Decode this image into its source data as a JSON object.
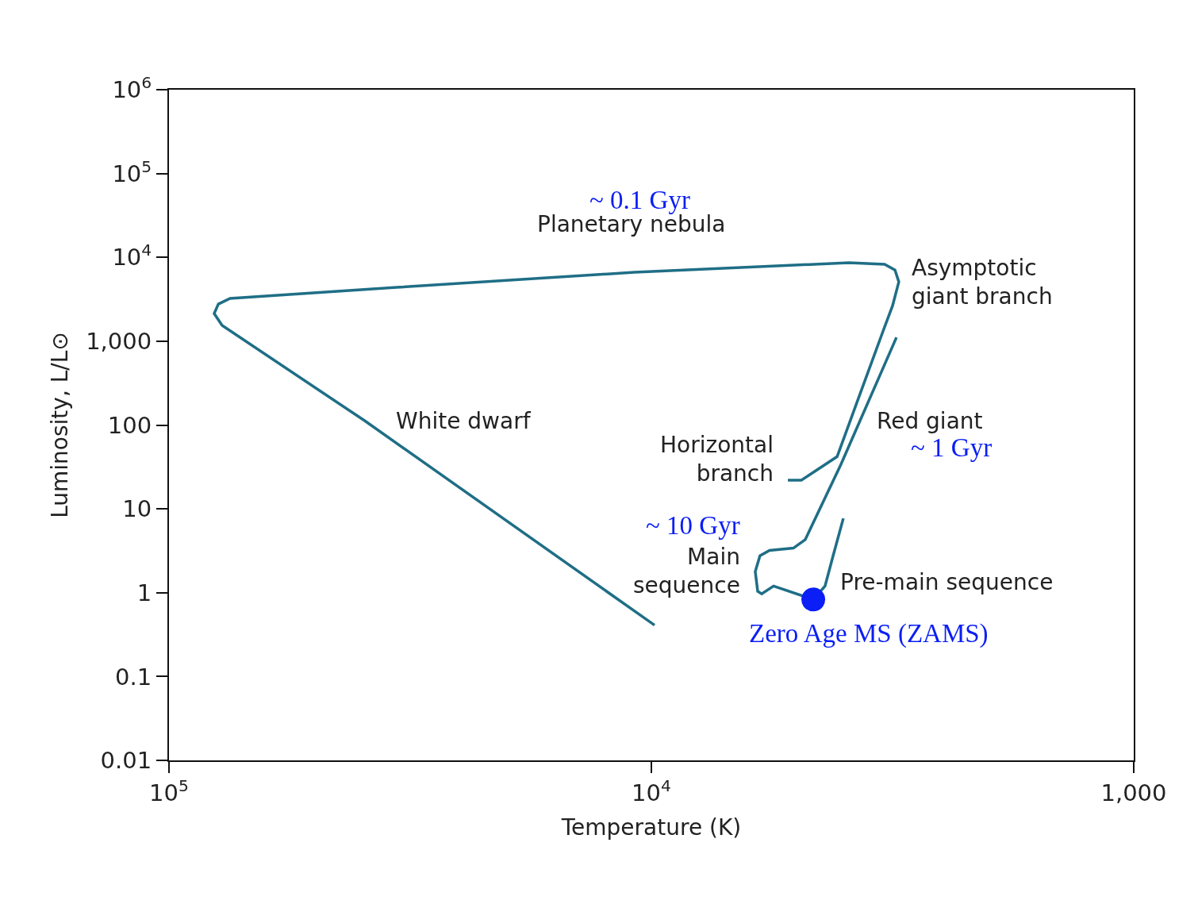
{
  "chart_data": {
    "type": "line",
    "xlabel": "Temperature (K)",
    "ylabel": "Luminosity, L/L⊙",
    "log": "xy",
    "marker": "none",
    "line_style": "solid",
    "xlim": [
      100000,
      1000
    ],
    "ylim": [
      0.01,
      1000000
    ],
    "xticks": [
      {
        "value": 100000,
        "label": "10$^{5}$"
      },
      {
        "value": 10000,
        "label": "10$^{4}$"
      },
      {
        "value": 1000,
        "label": "1,000"
      }
    ],
    "yticks": [
      {
        "value": 0.01,
        "label": "0.01"
      },
      {
        "value": 0.1,
        "label": "0.1"
      },
      {
        "value": 1,
        "label": "1"
      },
      {
        "value": 10,
        "label": "10"
      },
      {
        "value": 100,
        "label": "100"
      },
      {
        "value": 1000,
        "label": "1,000"
      },
      {
        "value": 10000,
        "label": "10$^{4}$"
      },
      {
        "value": 100000,
        "label": "10$^{5}$"
      },
      {
        "value": 1000000,
        "label": "10$^{6}$"
      }
    ],
    "series": [
      {
        "color": "#1f6e86",
        "x": [
          4000,
          4200,
          4365,
          4617
        ],
        "values": [
          7.7,
          2.76,
          1.2,
          0.83
        ]
      },
      {
        "color": "#1f6e86",
        "x": [
          4617,
          5580,
          5905,
          6020,
          6090,
          5955,
          5690,
          5077,
          4797,
          4045,
          3104
        ],
        "values": [
          0.83,
          1.2,
          0.97,
          1.04,
          1.79,
          2.76,
          3.2,
          3.4,
          4.3,
          34,
          1110
        ]
      },
      {
        "color": "#1f6e86",
        "x": [
          5212,
          4886,
          4120,
          3611,
          3322,
          3162,
          3069,
          3126,
          3284,
          3895,
          10830,
          33700,
          74700,
          79000,
          80600,
          77600,
          39250,
          9850
        ],
        "values": [
          22,
          22,
          42,
          335,
          1240,
          2650,
          5100,
          7080,
          8260,
          8630,
          6640,
          4390,
          3240,
          2770,
          2140,
          1540,
          112,
          0.41
        ]
      },
      {
        "type": "scatter",
        "color": "#0a1ef5",
        "marker": "circle",
        "x": [
          4617
        ],
        "values": [
          0.83
        ]
      }
    ],
    "annotations": [
      "~ 0.1 Gyr",
      "Planetary nebula",
      "Asymptotic\ngiant branch",
      "White dwarf",
      "Horizontal\nbranch",
      "Red giant",
      "~ 1 Gyr",
      "~ 10 Gyr",
      "Main\nsequence",
      "Pre-main sequence",
      "Zero Age MS (ZAMS)"
    ]
  }
}
